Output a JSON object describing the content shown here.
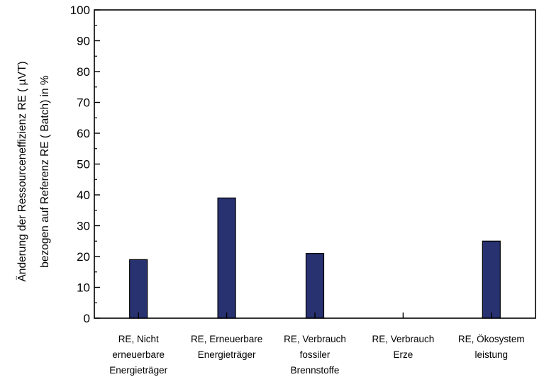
{
  "colors": {
    "bar": "#283271",
    "axis": "#000000"
  },
  "chart_data": {
    "type": "bar",
    "categories": [
      [
        "RE, Nicht",
        "erneuerbare",
        "Energieträger"
      ],
      [
        "RE, Erneuerbare",
        "Energieträger"
      ],
      [
        "RE, Verbrauch",
        "fossiler",
        "Brennstoffe"
      ],
      [
        "RE, Verbrauch",
        "Erze"
      ],
      [
        "RE, Ökosystem",
        "leistung"
      ]
    ],
    "values": [
      19,
      39,
      21,
      0,
      25
    ],
    "ylabel_lines": [
      "Änderung der Ressourceneffizienz RE  ( µVT)",
      "bezogen auf Referenz RE  ( Batch)  in %"
    ],
    "ylim": [
      0,
      100
    ],
    "yticks": [
      0,
      10,
      20,
      30,
      40,
      50,
      60,
      70,
      80,
      90,
      100
    ],
    "grid": false,
    "legend": "none"
  }
}
